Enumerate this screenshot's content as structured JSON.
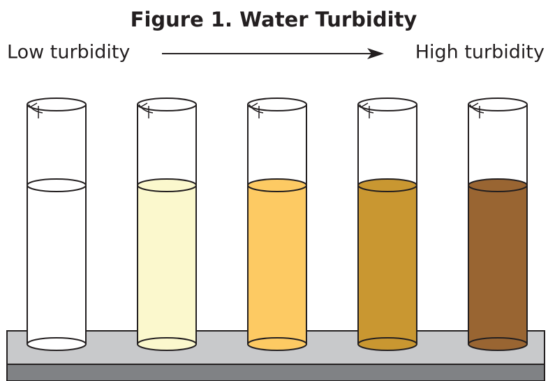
{
  "title": "Figure 1. Water Turbidity",
  "scale": {
    "low_label": "Low turbidity",
    "high_label": "High turbidity"
  },
  "cylinders": [
    {
      "color": "#ffffff"
    },
    {
      "color": "#fbf8cd"
    },
    {
      "color": "#fdca63"
    },
    {
      "color": "#c99731"
    },
    {
      "color": "#996532"
    }
  ]
}
